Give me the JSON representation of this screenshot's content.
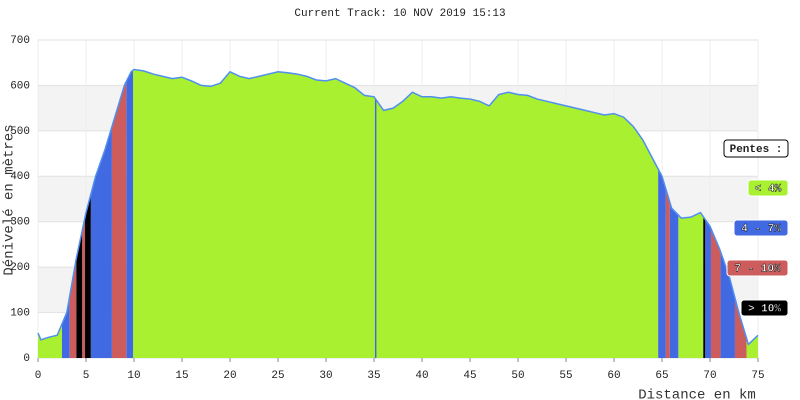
{
  "chart_data": {
    "type": "elevation-profile",
    "title": "Current Track: 10 NOV 2019 15:13",
    "x_label": "Distance en km",
    "y_label": "Dénivelé en mètres",
    "legend_title": "Pentes :",
    "line_color": "#4f8ff0",
    "grid": true,
    "xlim": [
      0,
      75
    ],
    "ylim": [
      0,
      700
    ],
    "xticks": [
      0,
      5,
      10,
      15,
      20,
      25,
      30,
      35,
      40,
      45,
      50,
      55,
      60,
      65,
      70,
      75
    ],
    "yticks": [
      0,
      100,
      200,
      300,
      400,
      500,
      600,
      700
    ],
    "x": [
      0,
      0.3,
      1,
      2,
      3,
      4,
      5,
      6,
      7,
      8,
      9,
      9.7,
      10,
      11,
      12,
      13,
      14,
      15,
      16,
      17,
      18,
      19,
      20,
      21,
      22,
      23,
      24,
      25,
      26,
      27,
      28,
      29,
      30,
      31,
      32,
      33,
      34,
      35,
      36,
      37,
      38,
      39,
      40,
      41,
      42,
      43,
      44,
      45,
      46,
      47,
      48,
      49,
      50,
      51,
      52,
      53,
      54,
      55,
      56,
      57,
      58,
      59,
      60,
      61,
      62,
      63,
      64,
      65,
      66,
      67,
      68,
      69,
      70,
      71,
      72,
      73,
      74,
      74.5,
      75
    ],
    "values": [
      55,
      40,
      45,
      50,
      100,
      220,
      320,
      400,
      460,
      530,
      600,
      630,
      635,
      632,
      625,
      620,
      615,
      618,
      610,
      600,
      598,
      605,
      630,
      620,
      615,
      620,
      625,
      630,
      628,
      625,
      620,
      612,
      610,
      615,
      605,
      595,
      578,
      575,
      545,
      550,
      565,
      585,
      575,
      575,
      572,
      575,
      572,
      570,
      565,
      555,
      580,
      585,
      580,
      578,
      570,
      565,
      560,
      555,
      550,
      545,
      540,
      535,
      538,
      530,
      510,
      480,
      440,
      400,
      330,
      308,
      310,
      320,
      290,
      240,
      180,
      100,
      30,
      40,
      50
    ],
    "series": [
      {
        "name": "< 4%",
        "color": "#a8f030",
        "ranges": [
          [
            0,
            2.5
          ],
          [
            9.9,
            64.6
          ],
          [
            66.7,
            69.3
          ],
          [
            73.8,
            75
          ]
        ]
      },
      {
        "name": "4 - 7%",
        "color": "#4169e1",
        "ranges": [
          [
            2.5,
            3.3
          ],
          [
            5.5,
            7.7
          ],
          [
            9.2,
            9.9
          ],
          [
            35.1,
            35.25
          ],
          [
            64.6,
            65.4
          ],
          [
            65.8,
            66.7
          ],
          [
            69.5,
            70.1
          ],
          [
            71.1,
            72.6
          ]
        ]
      },
      {
        "name": "7 - 10%",
        "color": "#cd5c5c",
        "ranges": [
          [
            3.3,
            4
          ],
          [
            4.6,
            4.9
          ],
          [
            7.7,
            9.2
          ],
          [
            65.4,
            65.8
          ],
          [
            70.1,
            71.1
          ],
          [
            72.6,
            73.8
          ]
        ]
      },
      {
        "name": "> 10%",
        "color": "#000000",
        "ranges": [
          [
            4,
            4.6
          ],
          [
            4.9,
            5.5
          ],
          [
            69.3,
            69.5
          ]
        ]
      }
    ]
  }
}
